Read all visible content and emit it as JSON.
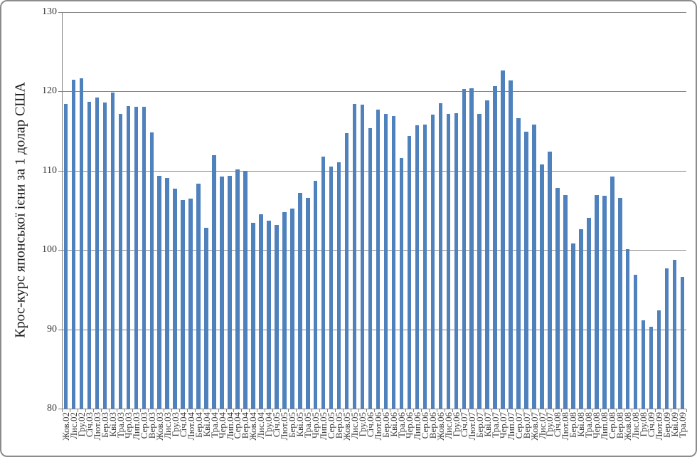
{
  "chart_data": {
    "type": "bar",
    "title": "",
    "xlabel": "",
    "ylabel": "Крос-курс японської ієни за 1 долар США",
    "ylim": [
      80,
      130
    ],
    "yticks": [
      130,
      120,
      110,
      100,
      90,
      80
    ],
    "grid": true,
    "legend": "none",
    "bar_color": "#4F81BD",
    "gridline_color": "#848484",
    "categories": [
      "Жов.02",
      "Лис.02",
      "Гру.02",
      "Січ.03",
      "Лют.03",
      "Бер.03",
      "Кві.03",
      "Тра.03",
      "Чер.03",
      "Лип.03",
      "Сер.03",
      "Вер.03",
      "Жов.03",
      "Лис.03",
      "Гру.03",
      "Січ.04",
      "Лют.04",
      "Бер.04",
      "Кві.04",
      "Тра.04",
      "Чер.04",
      "Лип.04",
      "Сер.04",
      "Вер.04",
      "Жов.04",
      "Лис.04",
      "Гру.04",
      "Січ.05",
      "Лют.05",
      "Бер.05",
      "Кві.05",
      "Тра.05",
      "Чер.05",
      "Лип.05",
      "Сер.05",
      "Вер.05",
      "Жов.05",
      "Лис.05",
      "Гру.05",
      "Січ.06",
      "Лют.06",
      "Бер.06",
      "Кві.06",
      "Тра.06",
      "Чер.06",
      "Лип.06",
      "Сер.06",
      "Вер.06",
      "Жов.06",
      "Лис.06",
      "Гру.06",
      "Січ.07",
      "Лют.07",
      "Бер.07",
      "Кві.07",
      "Тра.07",
      "Чер.07",
      "Лип.07",
      "Сер.07",
      "Вер.07",
      "Жов.07",
      "Лис.07",
      "Гру.07",
      "Січ.08",
      "Лют.08",
      "Бер.08",
      "Кві.08",
      "Тра.08",
      "Чер.08",
      "Лип.08",
      "Сер.08",
      "Вер.08",
      "Жов.08",
      "Лис.08",
      "Гру.08",
      "Січ.09",
      "Лют.09",
      "Бер.09",
      "Кві.09",
      "Тра.09"
    ],
    "values": [
      118.4,
      121.5,
      121.7,
      118.7,
      119.2,
      118.6,
      119.9,
      117.2,
      118.2,
      118.1,
      118.1,
      114.8,
      109.4,
      109.1,
      107.7,
      106.3,
      106.5,
      108.4,
      102.8,
      112.0,
      109.3,
      109.4,
      110.2,
      110.0,
      103.4,
      104.5,
      103.7,
      103.2,
      104.8,
      105.2,
      107.2,
      106.6,
      108.7,
      111.8,
      110.5,
      111.1,
      114.7,
      118.4,
      118.3,
      115.4,
      117.7,
      117.2,
      116.9,
      111.6,
      114.4,
      115.7,
      115.8,
      117.1,
      118.5,
      117.2,
      117.3,
      120.3,
      120.4,
      117.2,
      118.9,
      120.7,
      122.6,
      121.4,
      116.6,
      114.9,
      115.8,
      110.8,
      112.4,
      107.8,
      106.9,
      100.8,
      102.6,
      104.1,
      106.9,
      106.8,
      109.3,
      106.6,
      100.1,
      96.9,
      91.1,
      90.3,
      92.4,
      97.7,
      98.8,
      96.6
    ]
  }
}
